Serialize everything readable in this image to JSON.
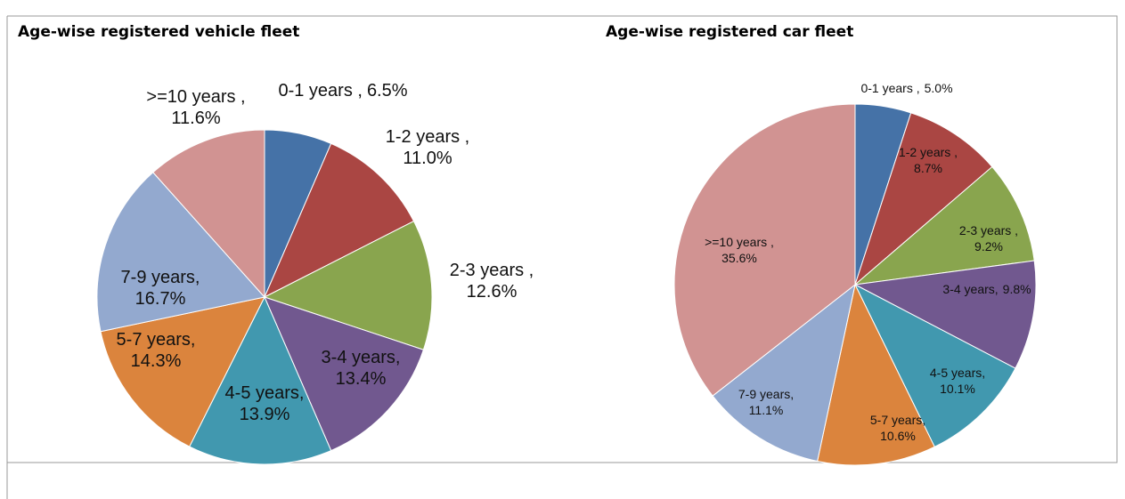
{
  "chart_data": [
    {
      "type": "pie",
      "title": "Age-wise registered vehicle fleet",
      "categories": [
        "0-1 years ,",
        "1-2 years ,",
        "2-3 years ,",
        "3-4 years,",
        "4-5 years,",
        "5-7 years,",
        "7-9 years,",
        ">=10 years ,"
      ],
      "values": [
        6.5,
        11.0,
        12.6,
        13.4,
        13.9,
        14.3,
        16.7,
        11.6
      ],
      "value_labels": [
        "6.5%",
        "11.0%",
        "12.6%",
        "13.4%",
        "13.9%",
        "14.3%",
        "16.7%",
        "11.6%"
      ],
      "colors": [
        "#4572a7",
        "#aa4643",
        "#89a54e",
        "#71588f",
        "#4198af",
        "#db843d",
        "#93a9cf",
        "#d19392"
      ]
    },
    {
      "type": "pie",
      "title": "Age-wise registered car fleet",
      "categories": [
        "0-1 years ,",
        "1-2 years ,",
        "2-3 years ,",
        "3-4 years,",
        "4-5 years,",
        "5-7 years,",
        "7-9 years,",
        ">=10 years ,"
      ],
      "values": [
        5.0,
        8.7,
        9.2,
        9.8,
        10.1,
        10.6,
        11.1,
        35.6
      ],
      "value_labels": [
        "5.0%",
        "8.7%",
        "9.2%",
        "9.8%",
        "10.1%",
        "10.6%",
        "11.1%",
        "35.6%"
      ],
      "colors": [
        "#4572a7",
        "#aa4643",
        "#89a54e",
        "#71588f",
        "#4198af",
        "#db843d",
        "#93a9cf",
        "#d19392"
      ]
    }
  ]
}
